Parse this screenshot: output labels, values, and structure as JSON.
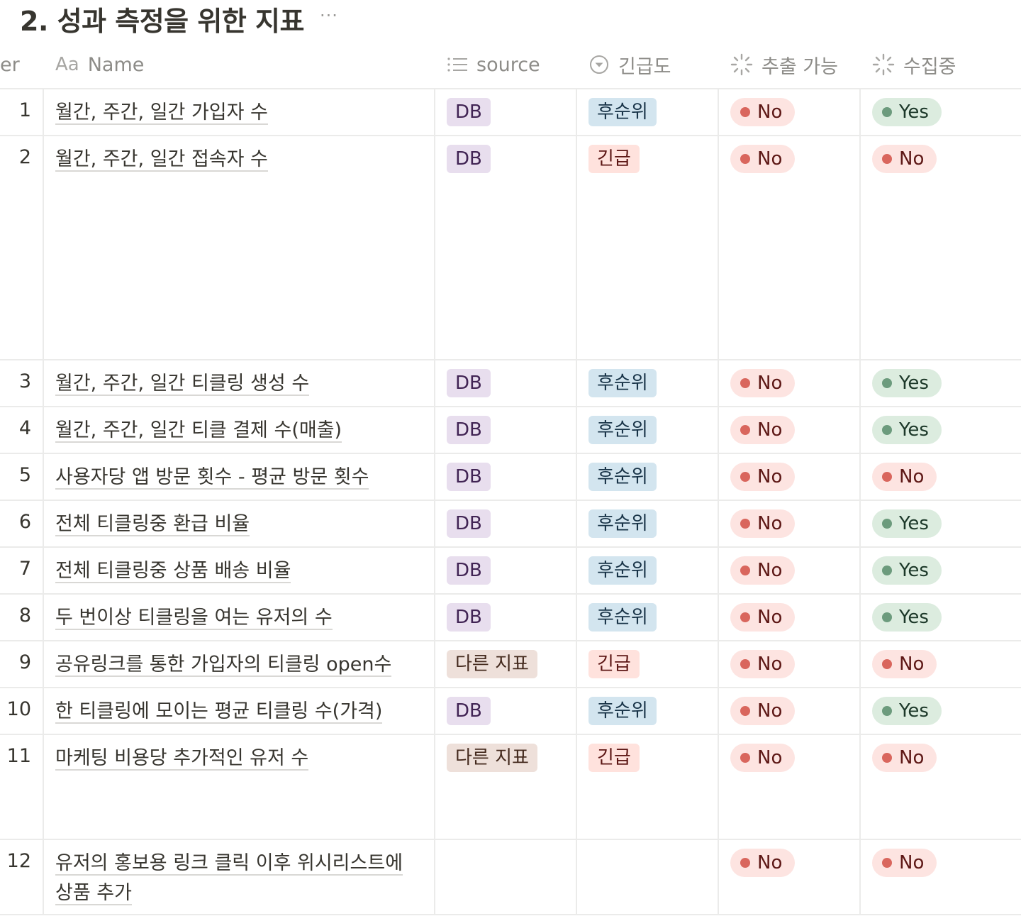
{
  "page": {
    "title": "2. 성과 측정을 위한 지표",
    "more_label": "···"
  },
  "columns": {
    "number": "er",
    "name_prefix": "Aa",
    "name": "Name",
    "source": "source",
    "urgency": "긴급도",
    "extractable": "추출 가능",
    "collecting": "수집중"
  },
  "icons": {
    "source": "list-icon",
    "urgency": "select-circle-icon",
    "extractable": "formula-spinner-icon",
    "collecting": "formula-spinner-icon"
  },
  "colors": {
    "db_tag_bg": "#e8deee",
    "other_metric_tag_bg": "#eee0da",
    "low_priority_tag_bg": "#d3e5ef",
    "urgent_tag_bg": "#ffe2dd",
    "no_pill_bg": "#fde4e1",
    "no_dot": "#d9665d",
    "yes_pill_bg": "#dcecdf",
    "yes_dot": "#6c9b7d"
  },
  "rows": [
    {
      "num": "1",
      "name": "월간, 주간, 일간 가입자 수",
      "source": "DB",
      "source_color": "purple",
      "urgency": "후순위",
      "urgency_color": "blue",
      "extract": "No",
      "collect": "Yes"
    },
    {
      "num": "2",
      "name": "월간, 주간, 일간 접속자 수",
      "source": "DB",
      "source_color": "purple",
      "urgency": "긴급",
      "urgency_color": "red",
      "extract": "No",
      "collect": "No"
    },
    {
      "num": "3",
      "name": "월간, 주간, 일간 티클링 생성 수",
      "source": "DB",
      "source_color": "purple",
      "urgency": "후순위",
      "urgency_color": "blue",
      "extract": "No",
      "collect": "Yes"
    },
    {
      "num": "4",
      "name": "월간, 주간, 일간 티클 결제 수(매출)",
      "source": "DB",
      "source_color": "purple",
      "urgency": "후순위",
      "urgency_color": "blue",
      "extract": "No",
      "collect": "Yes"
    },
    {
      "num": "5",
      "name": "사용자당 앱 방문 횟수 - 평균 방문 횟수",
      "source": "DB",
      "source_color": "purple",
      "urgency": "후순위",
      "urgency_color": "blue",
      "extract": "No",
      "collect": "No"
    },
    {
      "num": "6",
      "name": "전체 티클링중 환급 비율",
      "source": "DB",
      "source_color": "purple",
      "urgency": "후순위",
      "urgency_color": "blue",
      "extract": "No",
      "collect": "Yes"
    },
    {
      "num": "7",
      "name": "전체 티클링중 상품 배송 비율",
      "source": "DB",
      "source_color": "purple",
      "urgency": "후순위",
      "urgency_color": "blue",
      "extract": "No",
      "collect": "Yes"
    },
    {
      "num": "8",
      "name": "두 번이상 티클링을 여는 유저의 수",
      "source": "DB",
      "source_color": "purple",
      "urgency": "후순위",
      "urgency_color": "blue",
      "extract": "No",
      "collect": "Yes"
    },
    {
      "num": "9",
      "name": "공유링크를 통한 가입자의 티클링 open수",
      "source": "다른 지표",
      "source_color": "brown",
      "urgency": "긴급",
      "urgency_color": "red",
      "extract": "No",
      "collect": "No"
    },
    {
      "num": "10",
      "name": "한 티클링에 모이는 평균 티클링 수(가격)",
      "source": "DB",
      "source_color": "purple",
      "urgency": "후순위",
      "urgency_color": "blue",
      "extract": "No",
      "collect": "Yes"
    },
    {
      "num": "11",
      "name": "마케팅 비용당 추가적인 유저 수",
      "source": "다른 지표",
      "source_color": "brown",
      "urgency": "긴급",
      "urgency_color": "red",
      "extract": "No",
      "collect": "No"
    },
    {
      "num": "12",
      "name": "유저의 홍보용 링크 클릭 이후 위시리스트에 상품 추가",
      "source": "",
      "source_color": "",
      "urgency": "",
      "urgency_color": "",
      "extract": "No",
      "collect": "No"
    }
  ]
}
